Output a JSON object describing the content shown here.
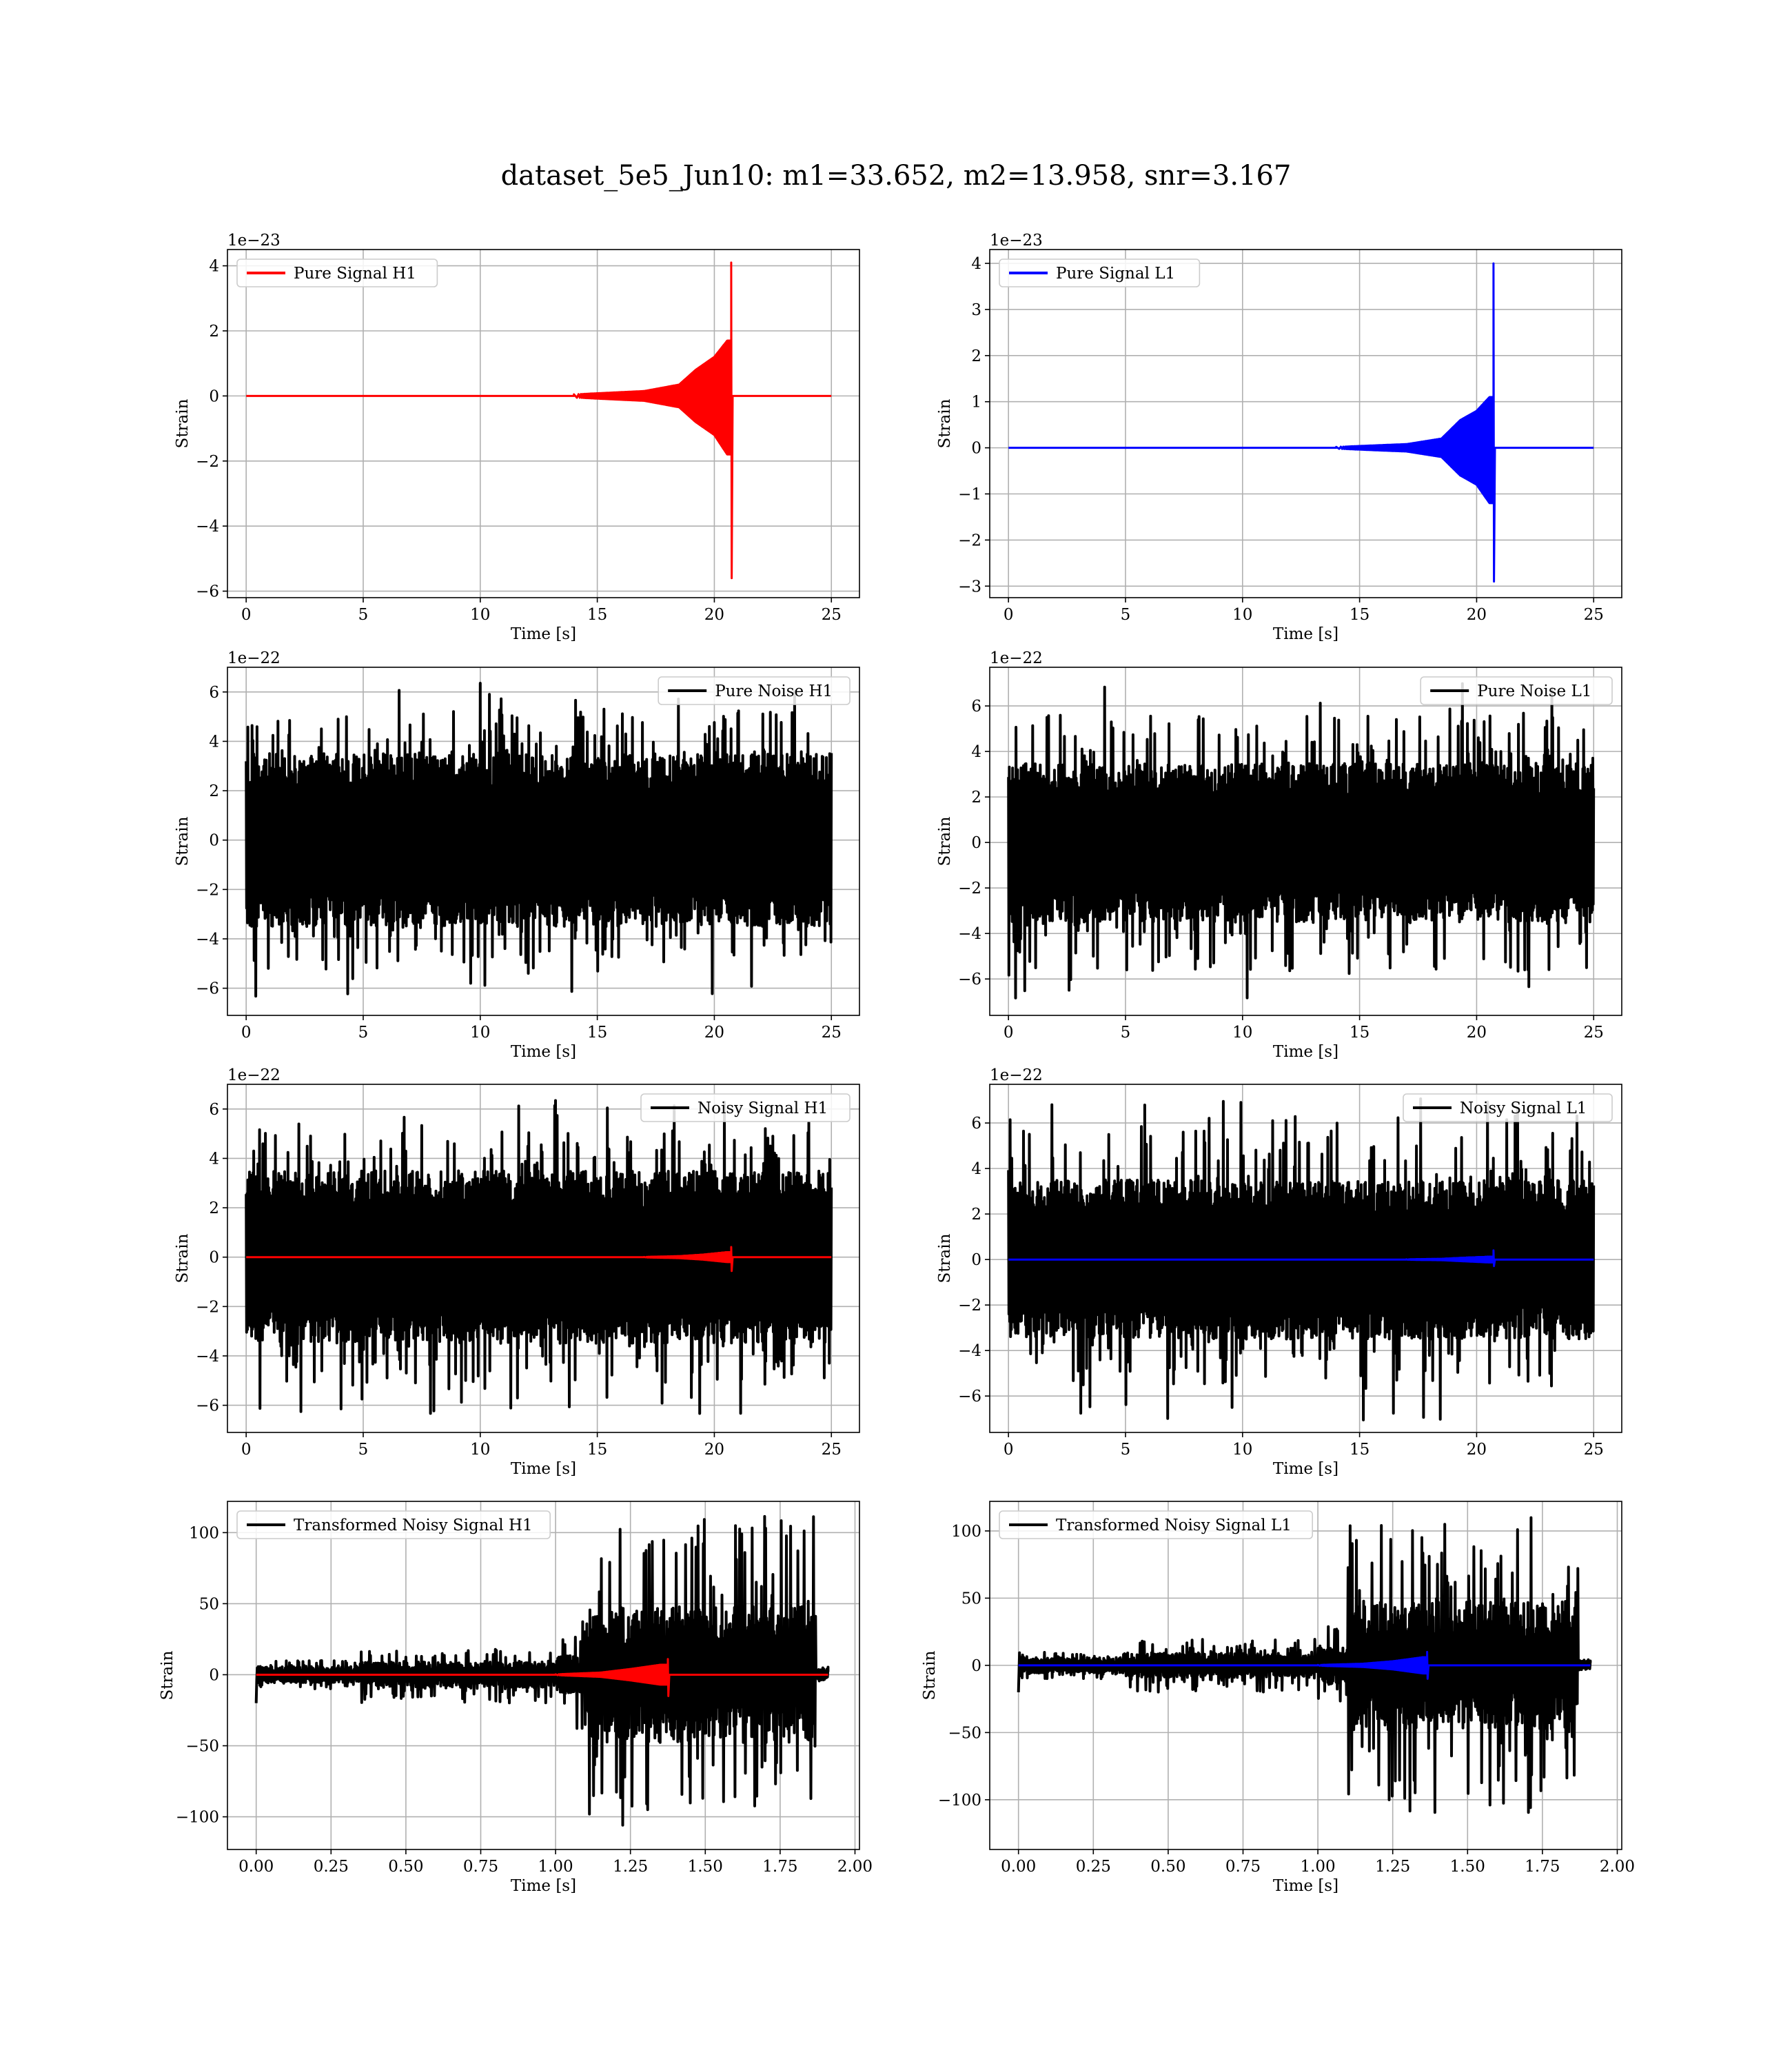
{
  "figure": {
    "title": "dataset_5e5_Jun10: m1=33.652, m2=13.958, snr=3.167"
  },
  "chart_data": [
    {
      "id": "pure-signal-h1",
      "type": "line",
      "xlabel": "Time [s]",
      "ylabel": "Strain",
      "offset_text": "1e−23",
      "xlim": [
        -0.8,
        26.2
      ],
      "ylim": [
        -6.2,
        4.5
      ],
      "xticks": [
        0,
        5,
        10,
        15,
        20,
        25
      ],
      "yticks": [
        -6,
        -4,
        -2,
        0,
        2,
        4
      ],
      "legend_position": "top-left",
      "grid": true,
      "series": [
        {
          "name": "Pure Signal H1",
          "color": "#ff0000",
          "kind": "chirp",
          "x_start": 0,
          "x_end": 25,
          "merger_x": 20.72,
          "pos_peak": 4.1,
          "neg_peak": -5.6,
          "pos_env_at": [
            [
              14,
              0.05
            ],
            [
              17,
              0.15
            ],
            [
              18.5,
              0.35
            ],
            [
              19.2,
              0.8
            ],
            [
              20,
              1.2
            ],
            [
              20.55,
              1.7
            ]
          ],
          "neg_env_at": [
            [
              14,
              -0.05
            ],
            [
              17,
              -0.15
            ],
            [
              18.5,
              -0.35
            ],
            [
              19.2,
              -0.8
            ],
            [
              20,
              -1.2
            ],
            [
              20.55,
              -1.8
            ]
          ]
        }
      ]
    },
    {
      "id": "pure-signal-l1",
      "type": "line",
      "xlabel": "Time [s]",
      "ylabel": "Strain",
      "offset_text": "1e−23",
      "xlim": [
        -0.8,
        26.2
      ],
      "ylim": [
        -3.25,
        4.3
      ],
      "xticks": [
        0,
        5,
        10,
        15,
        20,
        25
      ],
      "yticks": [
        -3,
        -2,
        -1,
        0,
        1,
        2,
        3,
        4
      ],
      "legend_position": "top-left",
      "grid": true,
      "series": [
        {
          "name": "Pure Signal L1",
          "color": "#0000ff",
          "kind": "chirp",
          "x_start": 0,
          "x_end": 25,
          "merger_x": 20.72,
          "pos_peak": 4.0,
          "neg_peak": -2.9,
          "pos_env_at": [
            [
              14,
              0.02
            ],
            [
              17,
              0.08
            ],
            [
              18.5,
              0.2
            ],
            [
              19.3,
              0.6
            ],
            [
              20,
              0.8
            ],
            [
              20.55,
              1.1
            ]
          ],
          "neg_env_at": [
            [
              14,
              -0.02
            ],
            [
              17,
              -0.08
            ],
            [
              18.5,
              -0.2
            ],
            [
              19.3,
              -0.6
            ],
            [
              20,
              -0.8
            ],
            [
              20.55,
              -1.2
            ]
          ]
        }
      ]
    },
    {
      "id": "pure-noise-h1",
      "type": "line",
      "xlabel": "Time [s]",
      "ylabel": "Strain",
      "offset_text": "1e−22",
      "xlim": [
        -0.8,
        26.2
      ],
      "ylim": [
        -7.1,
        7.0
      ],
      "xticks": [
        0,
        5,
        10,
        15,
        20,
        25
      ],
      "yticks": [
        -6,
        -4,
        -2,
        0,
        2,
        4,
        6
      ],
      "legend_position": "top-right",
      "grid": true,
      "series": [
        {
          "name": "Pure Noise H1",
          "color": "#000000",
          "kind": "noise",
          "x_start": 0,
          "x_end": 25,
          "band": 3.5,
          "max_abs": 6.4
        }
      ]
    },
    {
      "id": "pure-noise-l1",
      "type": "line",
      "xlabel": "Time [s]",
      "ylabel": "Strain",
      "offset_text": "1e−22",
      "xlim": [
        -0.8,
        26.2
      ],
      "ylim": [
        -7.6,
        7.7
      ],
      "xticks": [
        0,
        5,
        10,
        15,
        20,
        25
      ],
      "yticks": [
        -6,
        -4,
        -2,
        0,
        2,
        4,
        6
      ],
      "legend_position": "top-right",
      "grid": true,
      "series": [
        {
          "name": "Pure Noise L1",
          "color": "#000000",
          "kind": "noise",
          "x_start": 0,
          "x_end": 25,
          "band": 3.5,
          "max_abs": 7.1
        }
      ]
    },
    {
      "id": "noisy-signal-h1",
      "type": "line",
      "xlabel": "Time [s]",
      "ylabel": "Strain",
      "offset_text": "1e−22",
      "xlim": [
        -0.8,
        26.2
      ],
      "ylim": [
        -7.1,
        7.0
      ],
      "xticks": [
        0,
        5,
        10,
        15,
        20,
        25
      ],
      "yticks": [
        -6,
        -4,
        -2,
        0,
        2,
        4,
        6
      ],
      "legend_position": "top-right",
      "grid": true,
      "series": [
        {
          "name": "Noisy Signal H1",
          "color": "#000000",
          "kind": "noise",
          "x_start": 0,
          "x_end": 25,
          "band": 3.5,
          "max_abs": 6.4
        },
        {
          "color": "#ff0000",
          "kind": "chirp",
          "x_start": 0,
          "x_end": 25,
          "merger_x": 20.72,
          "pos_peak": 0.41,
          "neg_peak": -0.56,
          "pos_env_at": [
            [
              17,
              0.01
            ],
            [
              18.5,
              0.04
            ],
            [
              19.5,
              0.1
            ],
            [
              20.55,
              0.2
            ]
          ],
          "neg_env_at": [
            [
              17,
              -0.01
            ],
            [
              18.5,
              -0.04
            ],
            [
              19.5,
              -0.1
            ],
            [
              20.55,
              -0.2
            ]
          ]
        }
      ]
    },
    {
      "id": "noisy-signal-l1",
      "type": "line",
      "xlabel": "Time [s]",
      "ylabel": "Strain",
      "offset_text": "1e−22",
      "xlim": [
        -0.8,
        26.2
      ],
      "ylim": [
        -7.6,
        7.7
      ],
      "xticks": [
        0,
        5,
        10,
        15,
        20,
        25
      ],
      "yticks": [
        -6,
        -4,
        -2,
        0,
        2,
        4,
        6
      ],
      "legend_position": "top-right",
      "grid": true,
      "series": [
        {
          "name": "Noisy Signal L1",
          "color": "#000000",
          "kind": "noise",
          "x_start": 0,
          "x_end": 25,
          "band": 3.5,
          "max_abs": 7.1
        },
        {
          "color": "#0000ff",
          "kind": "chirp",
          "x_start": 0,
          "x_end": 25,
          "merger_x": 20.72,
          "pos_peak": 0.4,
          "neg_peak": -0.29,
          "pos_env_at": [
            [
              17,
              0.01
            ],
            [
              18.5,
              0.03
            ],
            [
              19.5,
              0.08
            ],
            [
              20.55,
              0.12
            ]
          ],
          "neg_env_at": [
            [
              17,
              -0.01
            ],
            [
              18.5,
              -0.03
            ],
            [
              19.5,
              -0.08
            ],
            [
              20.55,
              -0.13
            ]
          ]
        }
      ]
    },
    {
      "id": "transformed-h1",
      "type": "line",
      "xlabel": "Time [s]",
      "ylabel": "Strain",
      "offset_text": "",
      "xlim": [
        -0.096,
        2.015
      ],
      "ylim": [
        -123,
        122
      ],
      "xticks": [
        0.0,
        0.25,
        0.5,
        0.75,
        1.0,
        1.25,
        1.5,
        1.75,
        2.0
      ],
      "xticklabels": [
        "0.00",
        "0.25",
        "0.50",
        "0.75",
        "1.00",
        "1.25",
        "1.50",
        "1.75",
        "2.00"
      ],
      "yticks": [
        -100,
        -50,
        0,
        50,
        100
      ],
      "legend_position": "top-left",
      "grid": true,
      "series": [
        {
          "name": "Transformed Noisy Signal H1",
          "color": "#000000",
          "kind": "transformed",
          "x_start": 0,
          "x_end": 1.91,
          "segments": [
            [
              0,
              0.35,
              6,
              10
            ],
            [
              0.35,
              1.0,
              9,
              20
            ],
            [
              1.0,
              1.1,
              14,
              40
            ],
            [
              1.1,
              1.87,
              48,
              112
            ],
            [
              1.87,
              1.91,
              4,
              8
            ]
          ]
        },
        {
          "color": "#ff0000",
          "kind": "chirp",
          "x_start": 0,
          "x_end": 1.91,
          "merger_x": 1.375,
          "pos_peak": 11,
          "neg_peak": -15,
          "pos_env_at": [
            [
              1.0,
              0.3
            ],
            [
              1.15,
              1.5
            ],
            [
              1.25,
              4
            ],
            [
              1.35,
              7
            ]
          ],
          "neg_env_at": [
            [
              1.0,
              -0.3
            ],
            [
              1.15,
              -1.5
            ],
            [
              1.25,
              -4
            ],
            [
              1.35,
              -7
            ]
          ]
        }
      ]
    },
    {
      "id": "transformed-l1",
      "type": "line",
      "xlabel": "Time [s]",
      "ylabel": "Strain",
      "offset_text": "",
      "xlim": [
        -0.096,
        2.015
      ],
      "ylim": [
        -137,
        122
      ],
      "xticks": [
        0.0,
        0.25,
        0.5,
        0.75,
        1.0,
        1.25,
        1.5,
        1.75,
        2.0
      ],
      "xticklabels": [
        "0.00",
        "0.25",
        "0.50",
        "0.75",
        "1.00",
        "1.25",
        "1.50",
        "1.75",
        "2.00"
      ],
      "yticks": [
        -100,
        -50,
        0,
        50,
        100
      ],
      "legend_position": "top-left",
      "grid": true,
      "series": [
        {
          "name": "Transformed Noisy Signal L1",
          "color": "#000000",
          "kind": "transformed",
          "x_start": 0,
          "x_end": 1.91,
          "segments": [
            [
              0,
              0.35,
              6,
              10
            ],
            [
              0.35,
              1.0,
              9,
              20
            ],
            [
              1.0,
              1.1,
              14,
              30
            ],
            [
              1.1,
              1.87,
              48,
              110
            ],
            [
              1.87,
              1.91,
              4,
              8
            ]
          ]
        },
        {
          "color": "#0000ff",
          "kind": "chirp",
          "x_start": 0,
          "x_end": 1.91,
          "merger_x": 1.365,
          "pos_peak": 10,
          "neg_peak": -10,
          "pos_env_at": [
            [
              1.0,
              0.3
            ],
            [
              1.15,
              1.2
            ],
            [
              1.25,
              3
            ],
            [
              1.35,
              6
            ]
          ],
          "neg_env_at": [
            [
              1.0,
              -0.3
            ],
            [
              1.15,
              -1.2
            ],
            [
              1.25,
              -3
            ],
            [
              1.35,
              -6
            ]
          ]
        }
      ]
    }
  ]
}
